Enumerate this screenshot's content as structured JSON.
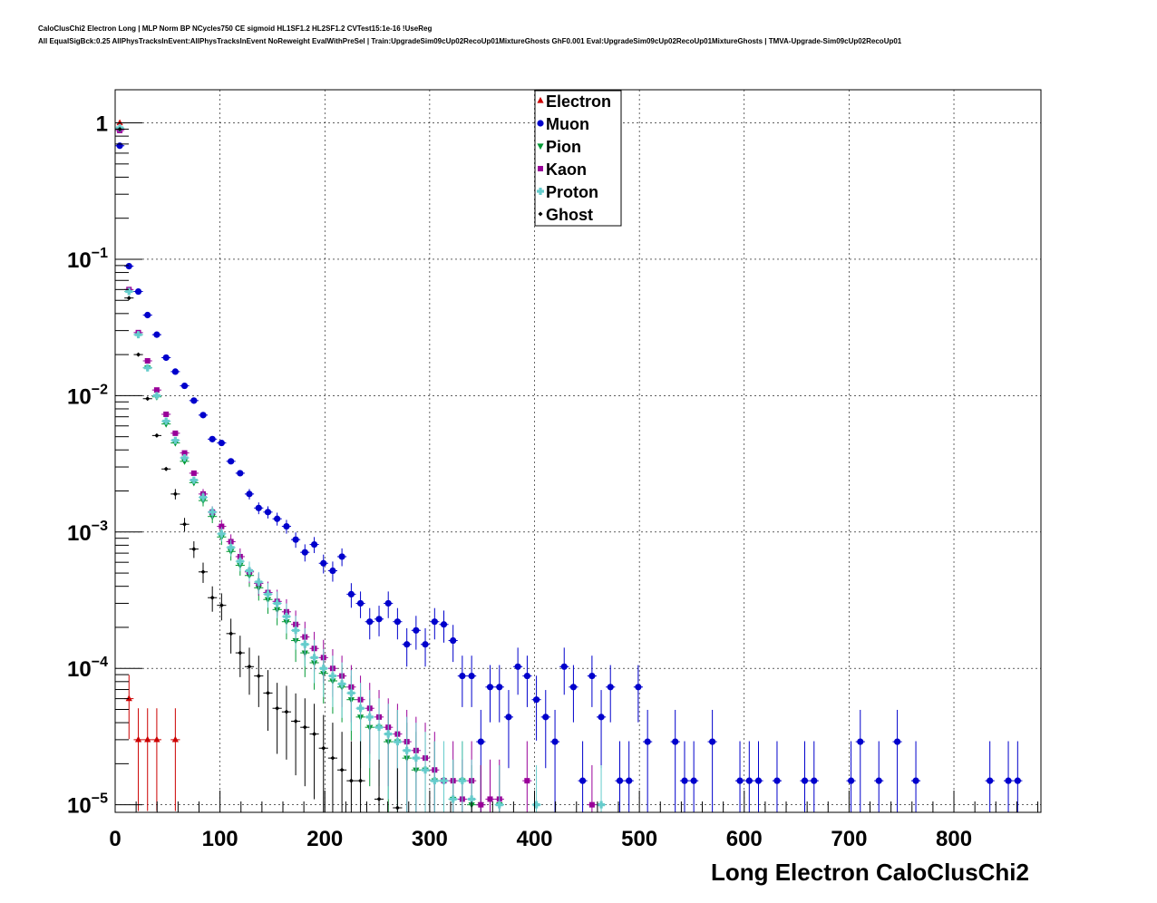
{
  "header": {
    "line1": "CaloClusChi2 Electron Long | MLP Norm BP NCycles750 CE sigmoid HL1SF1.2 HL2SF1.2 CVTest15:1e-16 !UseReg",
    "line2": "All EqualSigBck:0.25 AllPhysTracksInEvent:AllPhysTracksInEvent NoReweight EvalWithPreSel | Train:UpgradeSim09cUp02RecoUp01MixtureGhosts GhF0.001 Eval:UpgradeSim09cUp02RecoUp01MixtureGhosts | TMVA-Upgrade-Sim09cUp02RecoUp01"
  },
  "chart_data": {
    "type": "scatter",
    "xlabel": "Long Electron CaloClusChi2",
    "ylabel": "",
    "xlim": [
      0,
      883
    ],
    "ylim": [
      8.8e-06,
      1.75
    ],
    "yscale": "log",
    "grid": true,
    "legend_position": "top-center",
    "x_ticks": [
      "0",
      "100",
      "200",
      "300",
      "400",
      "500",
      "600",
      "700",
      "800"
    ],
    "x_tick_values": [
      0,
      100,
      200,
      300,
      400,
      500,
      600,
      700,
      800
    ],
    "y_ticks": [
      {
        "value": 1,
        "base": "1",
        "exp": ""
      },
      {
        "value": 0.1,
        "base": "10",
        "exp": "−1"
      },
      {
        "value": 0.01,
        "base": "10",
        "exp": "−2"
      },
      {
        "value": 0.001,
        "base": "10",
        "exp": "−3"
      },
      {
        "value": 0.0001,
        "base": "10",
        "exp": "−4"
      },
      {
        "value": 1e-05,
        "base": "10",
        "exp": "−5"
      }
    ],
    "series": [
      {
        "name": "Electron",
        "color": "#cc0000",
        "marker": "triangle",
        "x": [
          4.4,
          13.2,
          22.1,
          30.9,
          39.7,
          57.4
        ],
        "y": [
          1.0,
          6e-05,
          3e-05,
          3e-05,
          3e-05,
          3e-05
        ]
      },
      {
        "name": "Muon",
        "color": "#0000cc",
        "marker": "circle",
        "x": [
          4.4,
          13.2,
          22.1,
          30.9,
          39.7,
          48.6,
          57.4,
          66.2,
          75.1,
          83.9,
          92.7,
          101.5,
          110.4,
          119.2,
          128.0,
          136.9,
          145.7,
          154.5,
          163.4,
          172.2,
          181.0,
          189.9,
          198.7,
          207.5,
          216.3,
          225.2,
          234.0,
          242.8,
          251.7,
          260.5,
          269.3,
          278.2,
          287.0,
          295.8,
          304.7,
          313.5,
          322.3,
          331.1,
          340.0,
          348.8,
          357.6,
          366.5,
          375.3,
          384.1,
          393.0,
          401.8,
          410.6,
          419.5,
          428.3,
          437.1,
          445.9,
          454.8,
          463.6,
          472.4,
          481.3,
          490.1,
          498.9,
          507.8,
          534.2,
          543.1,
          551.9,
          569.6,
          595.9,
          604.8,
          613.6,
          631.3,
          657.7,
          666.6,
          701.9,
          710.7,
          728.4,
          746.0,
          763.7,
          834.3,
          851.9,
          860.8
        ],
        "y": [
          0.68,
          0.089,
          0.058,
          0.039,
          0.028,
          0.019,
          0.015,
          0.0118,
          0.0092,
          0.0072,
          0.0048,
          0.0045,
          0.0033,
          0.0027,
          0.0019,
          0.0015,
          0.0014,
          0.00125,
          0.0011,
          0.00088,
          0.00071,
          0.00081,
          0.00059,
          0.00052,
          0.00066,
          0.00035,
          0.0003,
          0.00022,
          0.00023,
          0.0003,
          0.00022,
          0.00015,
          0.00019,
          0.00015,
          0.00022,
          0.00021,
          0.00016,
          8.8e-05,
          8.8e-05,
          2.9e-05,
          7.3e-05,
          7.3e-05,
          4.4e-05,
          0.000103,
          8.8e-05,
          5.9e-05,
          4.4e-05,
          2.9e-05,
          0.000103,
          7.3e-05,
          1.5e-05,
          8.8e-05,
          4.4e-05,
          7.3e-05,
          1.5e-05,
          1.5e-05,
          7.3e-05,
          2.9e-05,
          2.9e-05,
          1.5e-05,
          1.5e-05,
          2.9e-05,
          1.5e-05,
          1.5e-05,
          1.5e-05,
          1.5e-05,
          1.5e-05,
          1.5e-05,
          1.5e-05,
          2.9e-05,
          1.5e-05,
          2.9e-05,
          1.5e-05,
          1.5e-05,
          1.5e-05,
          1.5e-05
        ]
      },
      {
        "name": "Pion",
        "color": "#009933",
        "marker": "triangle-down",
        "x": [
          4.4,
          13.2,
          22.1,
          30.9,
          39.7,
          48.6,
          57.4,
          66.2,
          75.1,
          83.9,
          92.7,
          101.5,
          110.4,
          119.2,
          128.0,
          136.9,
          145.7,
          154.5,
          163.4,
          172.2,
          181.0,
          189.9,
          198.7,
          207.5,
          216.3,
          225.2,
          234.0,
          242.8,
          251.7,
          260.5,
          269.3,
          278.2,
          287.0,
          295.8,
          304.7,
          313.5,
          322.3,
          331.1,
          340.0,
          348.8,
          366.5
        ],
        "y": [
          0.9,
          0.058,
          0.028,
          0.016,
          0.0098,
          0.0062,
          0.0045,
          0.0033,
          0.0023,
          0.0017,
          0.0013,
          0.00092,
          0.00072,
          0.00057,
          0.00048,
          0.00039,
          0.00032,
          0.00027,
          0.00022,
          0.00016,
          0.00013,
          0.00011,
          9.2e-05,
          8.1e-05,
          7.3e-05,
          5.9e-05,
          4.4e-05,
          3.7e-05,
          3.7e-05,
          2.9e-05,
          2.9e-05,
          2.2e-05,
          1.8e-05,
          1.8e-05,
          1.5e-05,
          1.5e-05,
          1.1e-05,
          1.5e-05,
          1e-05,
          1e-05,
          1e-05
        ]
      },
      {
        "name": "Kaon",
        "color": "#990099",
        "marker": "square",
        "x": [
          4.4,
          13.2,
          22.1,
          30.9,
          39.7,
          48.6,
          57.4,
          66.2,
          75.1,
          83.9,
          92.7,
          101.5,
          110.4,
          119.2,
          128.0,
          136.9,
          145.7,
          154.5,
          163.4,
          172.2,
          181.0,
          189.9,
          198.7,
          207.5,
          216.3,
          225.2,
          234.0,
          242.8,
          251.7,
          260.5,
          269.3,
          278.2,
          287.0,
          295.8,
          304.7,
          313.5,
          322.3,
          331.1,
          340.0,
          348.8,
          357.6,
          366.5,
          392.9,
          454.8
        ],
        "y": [
          0.88,
          0.06,
          0.029,
          0.018,
          0.011,
          0.0073,
          0.0053,
          0.0038,
          0.0027,
          0.0019,
          0.0014,
          0.0011,
          0.00085,
          0.00066,
          0.00051,
          0.00042,
          0.00036,
          0.00031,
          0.00026,
          0.00021,
          0.00017,
          0.00014,
          0.00012,
          0.0001,
          8.8e-05,
          7.3e-05,
          5.9e-05,
          5.1e-05,
          4.4e-05,
          3.7e-05,
          3.3e-05,
          2.9e-05,
          2.5e-05,
          2.2e-05,
          1.8e-05,
          1.5e-05,
          1.5e-05,
          1.1e-05,
          1.5e-05,
          1e-05,
          1.1e-05,
          1.1e-05,
          1.5e-05,
          1e-05
        ]
      },
      {
        "name": "Proton",
        "color": "#66cccc",
        "marker": "cross",
        "x": [
          4.4,
          13.2,
          22.1,
          30.9,
          39.7,
          48.6,
          57.4,
          66.2,
          75.1,
          83.9,
          92.7,
          101.5,
          110.4,
          119.2,
          128.0,
          136.9,
          145.7,
          154.5,
          163.4,
          172.2,
          181.0,
          189.9,
          198.7,
          207.5,
          216.3,
          225.2,
          234.0,
          242.8,
          251.7,
          260.5,
          269.3,
          278.2,
          287.0,
          295.8,
          304.7,
          313.5,
          322.3,
          331.1,
          340.0,
          366.5,
          401.8,
          463.6
        ],
        "y": [
          0.92,
          0.058,
          0.028,
          0.016,
          0.01,
          0.0065,
          0.0047,
          0.0035,
          0.0024,
          0.0018,
          0.0014,
          0.00097,
          0.00077,
          0.00061,
          0.00052,
          0.00043,
          0.00035,
          0.0003,
          0.00024,
          0.00019,
          0.00015,
          0.00012,
          0.0001,
          8.8e-05,
          7.7e-05,
          6.6e-05,
          5.1e-05,
          4.4e-05,
          3.7e-05,
          3.3e-05,
          2.9e-05,
          2.5e-05,
          2.2e-05,
          1.8e-05,
          1.5e-05,
          1.5e-05,
          1.1e-05,
          1.5e-05,
          1.1e-05,
          1e-05,
          1e-05,
          1e-05
        ]
      },
      {
        "name": "Ghost",
        "color": "#000000",
        "marker": "diamond",
        "x": [
          4.4,
          13.2,
          22.1,
          30.9,
          39.7,
          48.6,
          57.4,
          66.2,
          75.1,
          83.9,
          92.7,
          101.5,
          110.4,
          119.2,
          128.0,
          136.9,
          145.7,
          154.5,
          163.4,
          172.2,
          181.0,
          189.9,
          198.7,
          207.5,
          216.3,
          225.2,
          234.0,
          251.7,
          269.3
        ],
        "y": [
          0.9,
          0.052,
          0.02,
          0.0095,
          0.0051,
          0.0029,
          0.0019,
          0.00114,
          0.00075,
          0.00051,
          0.00033,
          0.00029,
          0.00018,
          0.00013,
          0.000103,
          8.8e-05,
          6.6e-05,
          5.1e-05,
          4.8e-05,
          4.1e-05,
          3.7e-05,
          3.3e-05,
          2.6e-05,
          2.2e-05,
          1.8e-05,
          1.5e-05,
          1.5e-05,
          1.1e-05,
          9.5e-06
        ]
      }
    ]
  }
}
